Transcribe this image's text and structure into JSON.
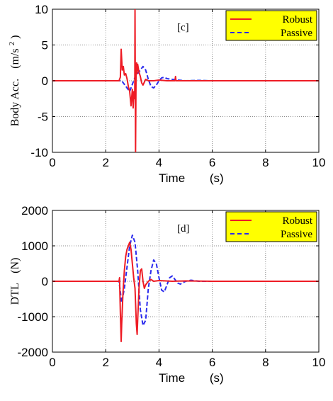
{
  "chart_data": [
    {
      "type": "line",
      "panel_tag": "[c]",
      "xlabel": "Time",
      "xunit": "(s)",
      "ylabel": "Body Acc.",
      "yunit_pre": "(m/s",
      "yunit_sup": "2",
      "yunit_post": ")",
      "xlim": [
        0,
        10
      ],
      "ylim": [
        -10,
        10
      ],
      "xticks": [
        0,
        2,
        4,
        6,
        8,
        10
      ],
      "yticks": [
        -10,
        -5,
        0,
        5,
        10
      ],
      "grid": true,
      "legend_position": "top-right",
      "series": [
        {
          "name": "Robust",
          "color": "#ee1c25",
          "dash": "solid",
          "x": [
            0,
            2.5,
            2.55,
            2.58,
            2.62,
            2.66,
            2.7,
            2.75,
            2.8,
            2.85,
            2.9,
            2.95,
            3.0,
            3.03,
            3.06,
            3.09,
            3.1,
            3.12,
            3.14,
            3.16,
            3.18,
            3.2,
            3.25,
            3.3,
            3.35,
            3.4,
            3.5,
            3.6,
            3.8,
            4.0,
            4.3,
            4.6,
            4.62,
            4.64,
            5.0,
            6.0,
            7.0,
            8.0,
            9.0,
            10.0
          ],
          "y": [
            0,
            0,
            0.5,
            4.4,
            1.5,
            2.0,
            0.8,
            1.0,
            0.3,
            -0.8,
            -1.5,
            -3.5,
            -1.2,
            -3.8,
            -1.5,
            -2.5,
            10.0,
            -10.0,
            1.5,
            2.5,
            1.0,
            2.3,
            1.2,
            0.6,
            -0.3,
            -0.6,
            0.2,
            0.0,
            0.0,
            0.1,
            0.0,
            0.0,
            0.6,
            0.0,
            0.0,
            0.0,
            0.0,
            0.0,
            0.0,
            0.0
          ]
        },
        {
          "name": "Passive",
          "color": "#2b2bee",
          "dash": "dashed",
          "x": [
            0,
            2.6,
            2.7,
            2.8,
            2.9,
            3.0,
            3.1,
            3.2,
            3.3,
            3.4,
            3.5,
            3.6,
            3.7,
            3.8,
            3.9,
            4.0,
            4.1,
            4.2,
            4.3,
            4.5,
            4.7,
            5.0,
            5.5,
            6.0,
            7.0,
            8.0,
            10.0
          ],
          "y": [
            0,
            0,
            -0.5,
            -1.0,
            -1.5,
            -0.5,
            0.5,
            1.0,
            1.5,
            2.0,
            1.5,
            0.2,
            -0.8,
            -1.0,
            -0.6,
            0.0,
            0.4,
            0.5,
            0.3,
            0.2,
            0.1,
            0.0,
            0.05,
            0.0,
            0.0,
            0.0,
            0.0
          ]
        }
      ]
    },
    {
      "type": "line",
      "panel_tag": "[d]",
      "xlabel": "Time",
      "xunit": "(s)",
      "ylabel": "DTL",
      "yunit": "(N)",
      "xlim": [
        0,
        10
      ],
      "ylim": [
        -2000,
        2000
      ],
      "xticks": [
        0,
        2,
        4,
        6,
        8,
        10
      ],
      "yticks": [
        -2000,
        -1000,
        0,
        1000,
        2000
      ],
      "grid": true,
      "legend_position": "top-right",
      "series": [
        {
          "name": "Robust",
          "color": "#ee1c25",
          "dash": "solid",
          "x": [
            0,
            2.5,
            2.52,
            2.55,
            2.58,
            2.6,
            2.65,
            2.7,
            2.75,
            2.8,
            2.85,
            2.9,
            2.95,
            3.0,
            3.05,
            3.1,
            3.15,
            3.18,
            3.2,
            3.25,
            3.3,
            3.35,
            3.4,
            3.45,
            3.5,
            3.6,
            3.7,
            3.8,
            4.0,
            4.5,
            5.0,
            6.0,
            7.0,
            8.0,
            10.0
          ],
          "y": [
            0,
            0,
            100,
            -900,
            -1700,
            -1200,
            -300,
            300,
            700,
            900,
            1000,
            1100,
            900,
            500,
            100,
            -200,
            -1200,
            -1500,
            -1100,
            -200,
            300,
            350,
            0,
            -200,
            -100,
            0,
            50,
            0,
            20,
            0,
            10,
            0,
            0,
            0,
            0
          ]
        },
        {
          "name": "Passive",
          "color": "#2b2bee",
          "dash": "dashed",
          "x": [
            0,
            2.5,
            2.6,
            2.7,
            2.8,
            2.9,
            3.0,
            3.1,
            3.2,
            3.3,
            3.4,
            3.5,
            3.6,
            3.7,
            3.8,
            3.9,
            4.0,
            4.1,
            4.2,
            4.3,
            4.4,
            4.5,
            4.6,
            4.7,
            4.8,
            5.0,
            5.2,
            5.5,
            6.0,
            7.0,
            10.0
          ],
          "y": [
            0,
            0,
            -600,
            -200,
            400,
            1000,
            1300,
            1100,
            300,
            -800,
            -1250,
            -1100,
            -200,
            300,
            600,
            500,
            100,
            -250,
            -300,
            -100,
            100,
            150,
            50,
            -50,
            -80,
            0,
            30,
            0,
            0,
            0,
            0
          ]
        }
      ]
    }
  ]
}
